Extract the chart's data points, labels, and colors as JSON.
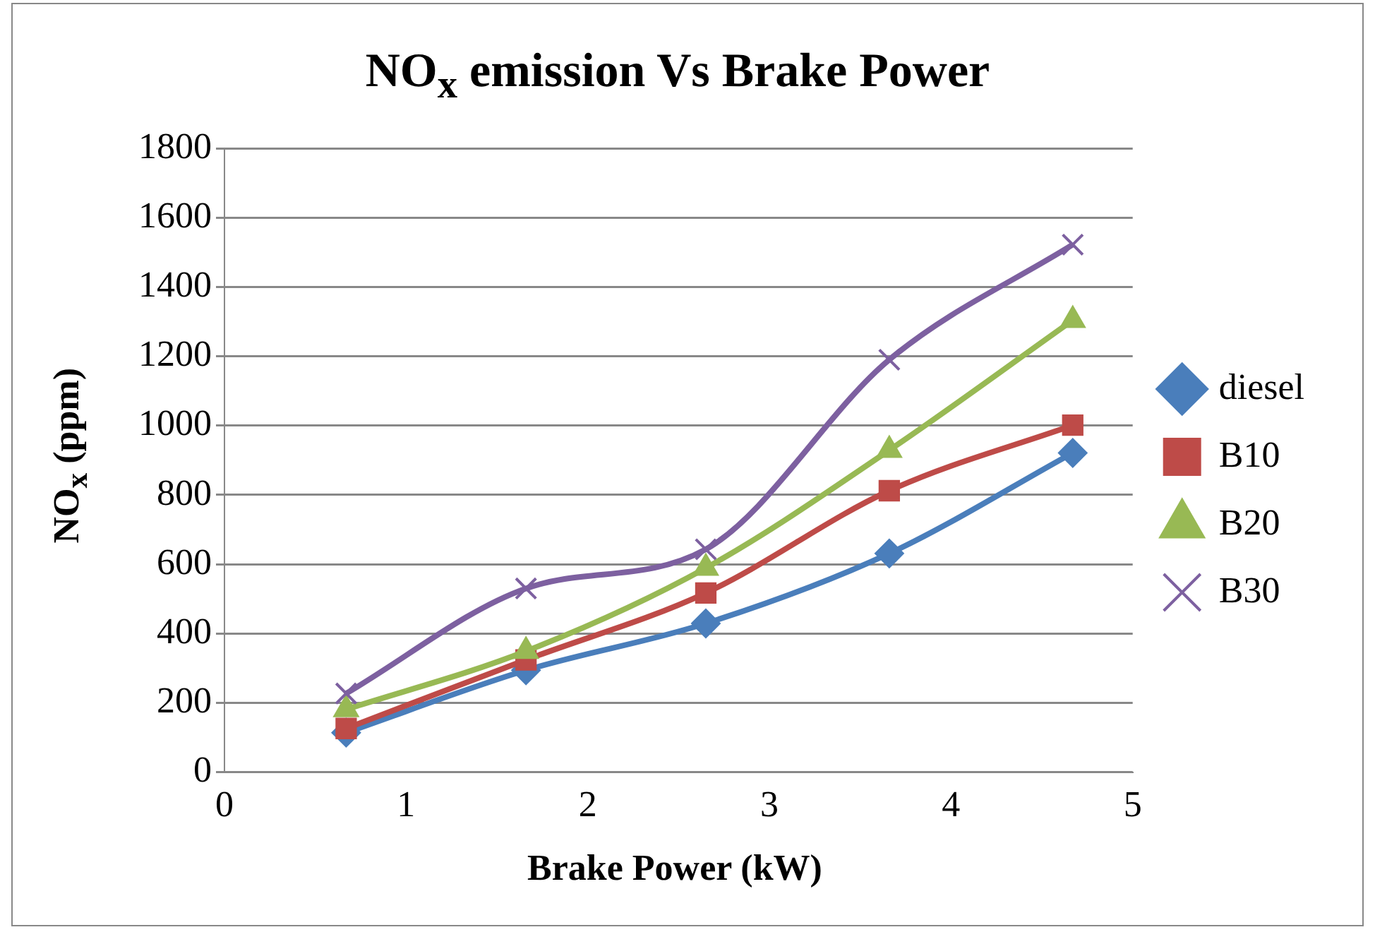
{
  "chart_data": {
    "type": "line",
    "title": "NO$_{x}$ emission Vs Brake Power",
    "xlabel": "Brake Power (kW)",
    "ylabel": "NO$_{x}$ (ppm)",
    "x": [
      0.67,
      1.66,
      2.65,
      3.66,
      4.67
    ],
    "series": [
      {
        "name": "diesel",
        "color": "#4a7ebb",
        "marker": "diamond",
        "values": [
          114,
          294,
          429,
          631,
          921
        ]
      },
      {
        "name": "B10",
        "color": "#be4b48",
        "marker": "square",
        "values": [
          126,
          324,
          517,
          812,
          1001
        ]
      },
      {
        "name": "B20",
        "color": "#98b954",
        "marker": "triangle",
        "values": [
          181,
          349,
          589,
          929,
          1304
        ]
      },
      {
        "name": "B30",
        "color": "#7d60a0",
        "marker": "cross",
        "values": [
          227,
          530,
          643,
          1190,
          1522
        ]
      }
    ],
    "xlim": [
      0,
      5
    ],
    "xticks": [
      0,
      1,
      2,
      3,
      4,
      5
    ],
    "ylim": [
      0,
      1800
    ],
    "yticks": [
      0,
      200,
      400,
      600,
      800,
      1000,
      1200,
      1400,
      1600,
      1800
    ],
    "grid": "y",
    "legend": "right"
  }
}
